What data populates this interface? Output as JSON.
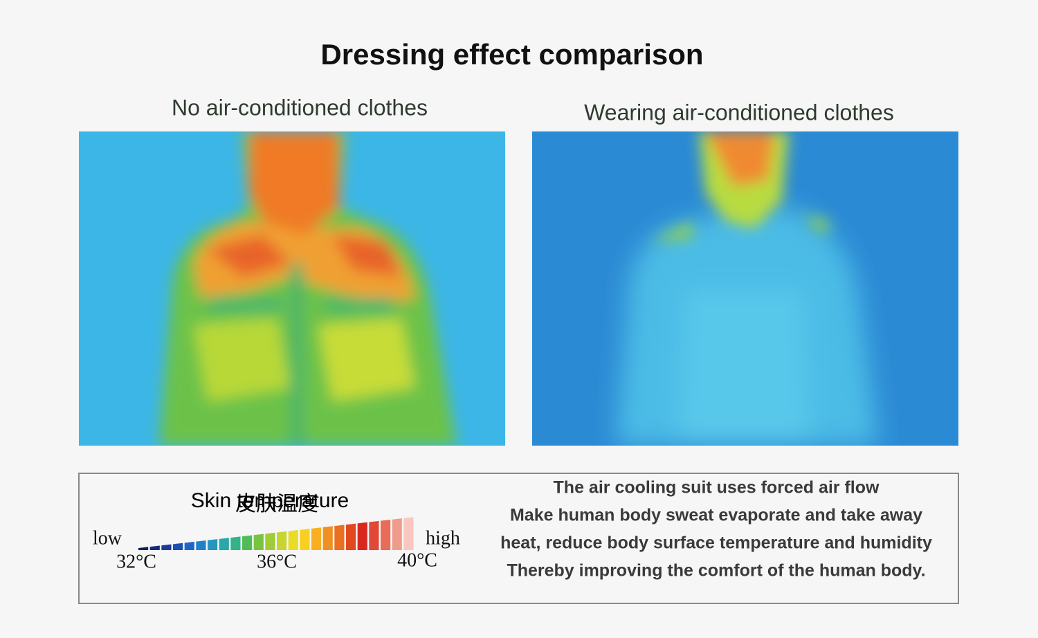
{
  "header": {
    "title": "Dressing effect comparison"
  },
  "panels": [
    {
      "caption": "No air-conditioned clothes"
    },
    {
      "caption": "Wearing air-conditioned clothes"
    }
  ],
  "legend": {
    "title": "Skin temperature",
    "title_cn": "皮肤温度",
    "low": "low",
    "high": "high",
    "ticks": [
      "32°C",
      "36°C",
      "40°C"
    ]
  },
  "description": [
    "The air cooling suit uses forced air flow",
    "Make human body sweat evaporate and take away",
    "heat, reduce body surface temperature and humidity",
    "Thereby improving the comfort of the human body."
  ]
}
